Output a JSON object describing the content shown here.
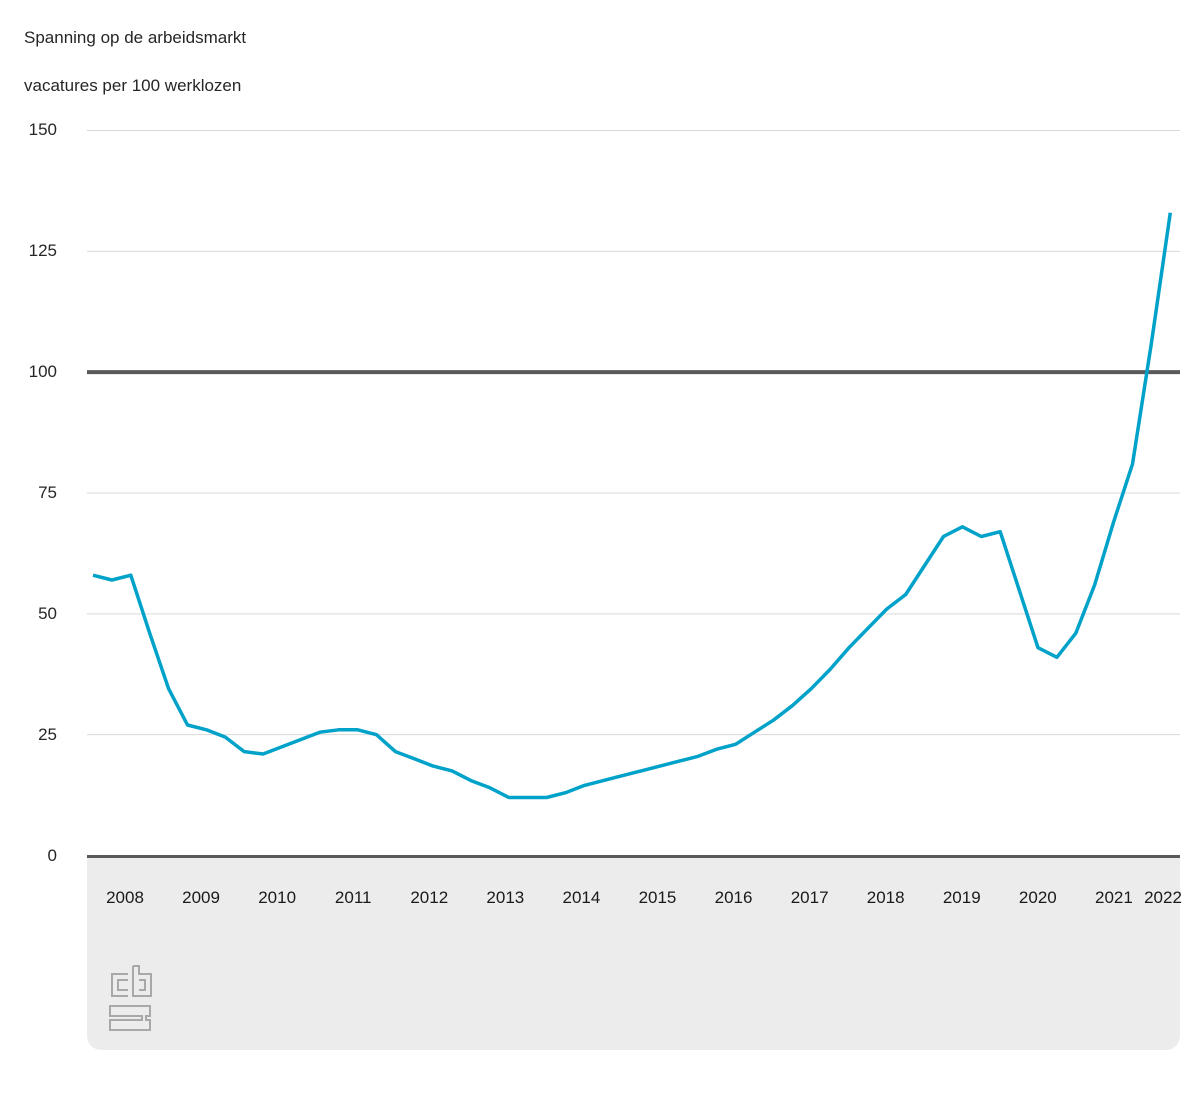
{
  "chart": {
    "title": "Spanning op de arbeidsmarkt",
    "subtitle": "vacatures per 100 werklozen"
  },
  "chart_data": {
    "type": "line",
    "title": "Spanning op de arbeidsmarkt",
    "subtitle": "vacatures per 100 werklozen",
    "xlabel": "",
    "ylabel": "vacatures per 100 werklozen",
    "x_start": "2008-Q1",
    "x_end": "2022-Q2",
    "interval": "quarter",
    "values": [
      58,
      57,
      58,
      46,
      34.5,
      27,
      26,
      24.5,
      21.5,
      21,
      22.5,
      24,
      25.5,
      26,
      26,
      25,
      21.5,
      20,
      18.5,
      17.5,
      15.5,
      14,
      12,
      12,
      12,
      13,
      14.5,
      15.5,
      16.5,
      17.5,
      18.5,
      19.5,
      20.5,
      22,
      23,
      25.5,
      28,
      31,
      34.5,
      38.5,
      43,
      47,
      51,
      54,
      60,
      66,
      68,
      66,
      67,
      55,
      43,
      41,
      46,
      56,
      69,
      81,
      106,
      133
    ],
    "x_tick_labels": [
      "2008",
      "2009",
      "2010",
      "2011",
      "2012",
      "2013",
      "2014",
      "2015",
      "2016",
      "2017",
      "2018",
      "2019",
      "2020",
      "2021",
      "2022"
    ],
    "y_ticks": [
      0,
      25,
      50,
      75,
      100,
      125,
      150
    ],
    "ylim": [
      0,
      150
    ],
    "reference_line": 100,
    "grid": true,
    "legend": false,
    "source_logo": "CBS",
    "colors": {
      "line": "#00a2c9",
      "reference_line": "#58595b",
      "gridline": "#d9d9d9",
      "axis_strip_bg": "#ececec",
      "tick_short": "#bdbdbd",
      "tick_long": "#b3b3b3",
      "text": "#262626",
      "logo": "#a8a8a8"
    }
  }
}
